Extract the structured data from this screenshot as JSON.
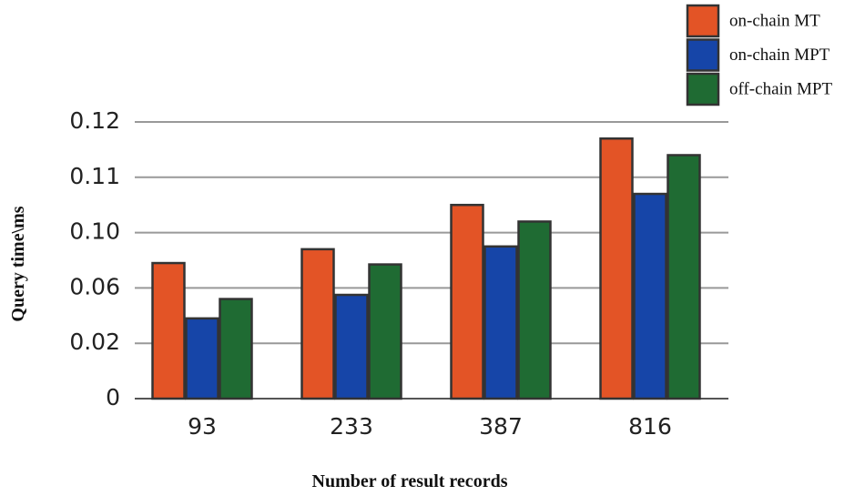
{
  "chart_data": {
    "type": "bar",
    "x_label": "Number of result records",
    "y_label": "Query time\\ms",
    "categories": [
      "93",
      "233",
      "387",
      "816"
    ],
    "series": [
      {
        "name": "on-chain MT",
        "color": "#e35426",
        "values": [
          0.078,
          0.088,
          0.105,
          0.117
        ]
      },
      {
        "name": "on-chain MPT",
        "color": "#1645a8",
        "values": [
          0.038,
          0.055,
          0.09,
          0.107
        ]
      },
      {
        "name": "off-chain MPT",
        "color": "#1f6b33",
        "values": [
          0.052,
          0.077,
          0.102,
          0.114
        ]
      }
    ],
    "ylim": [
      0,
      0.12
    ],
    "yticks": [
      0,
      0.02,
      0.06,
      {
        "value": 0.1,
        "label": "0.10"
      },
      0.11,
      0.12
    ],
    "grid": true,
    "legend": "top-right"
  }
}
